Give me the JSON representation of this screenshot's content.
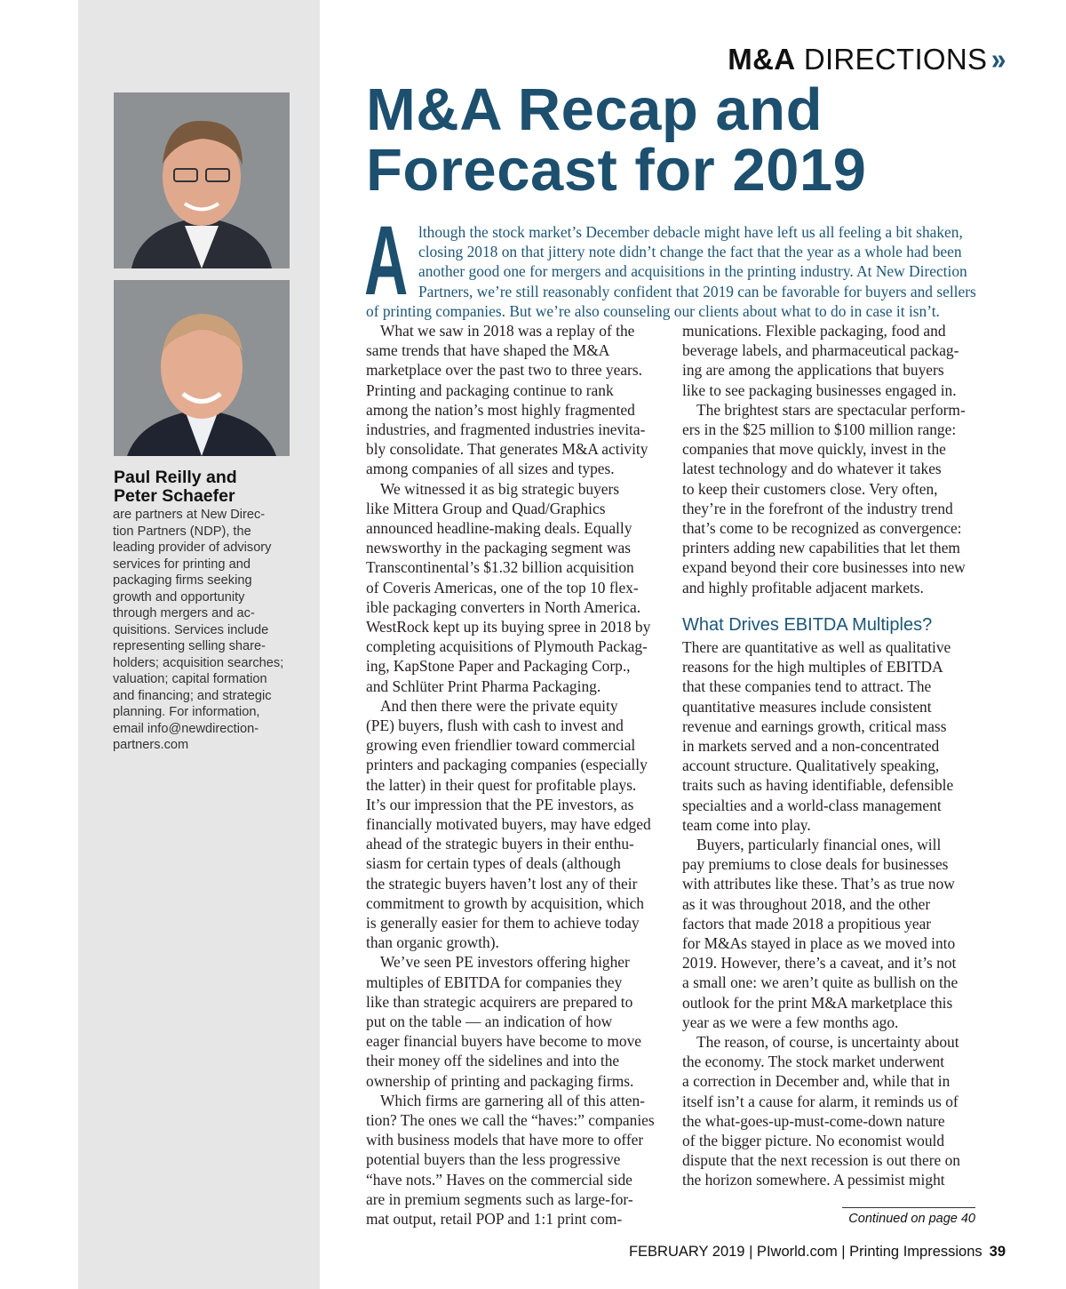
{
  "header": {
    "section_bold": "M&A",
    "section_light": "DIRECTIONS",
    "chevron": "»",
    "accent_color": "#1d5677"
  },
  "title": {
    "line1": "M&A Recap and",
    "line2": "Forecast for 2019"
  },
  "sidebar": {
    "photos": [
      {
        "icon": "portrait-paul-reilly"
      },
      {
        "icon": "portrait-peter-schaefer"
      }
    ],
    "name_lines": [
      "Paul Reilly and",
      "Peter Schaefer"
    ],
    "bio_lines": [
      "are partners at New Direc-",
      "tion Partners (NDP), the",
      "leading provider of advisory",
      "services for printing and",
      "packaging firms seeking",
      "growth and opportunity",
      "through mergers and ac-",
      "quisitions. Services include",
      "representing selling share-",
      "holders; acquisition searches;",
      "valuation; capital formation",
      "and financing; and strategic",
      "planning. For information,",
      "email info@newdirection-",
      "partners.com"
    ]
  },
  "intro": {
    "drop_cap": "A",
    "lines": [
      "lthough the stock market’s December debacle might have left us all feeling a bit shaken,",
      "closing 2018 on that jittery note didn’t change the fact that the year as a whole had been",
      "another good one for mergers and acquisitions in the printing industry. At New Direction",
      "Partners, we’re still reasonably confident that 2019 can be favorable for buyers and sellers",
      "of printing companies. But we’re also counseling our clients about what to do in case it isn’t."
    ]
  },
  "column1": [
    {
      "t": "What we saw in 2018 was a replay of the",
      "i": 1
    },
    {
      "t": "same trends that have shaped the M&A"
    },
    {
      "t": "marketplace over the past two to three years."
    },
    {
      "t": "Printing and packaging continue to rank"
    },
    {
      "t": "among the nation’s most highly fragmented"
    },
    {
      "t": "industries, and fragmented industries inevita-"
    },
    {
      "t": "bly consolidate. That generates M&A activity"
    },
    {
      "t": "among companies of all sizes and types."
    },
    {
      "t": "We witnessed it as big strategic buyers",
      "i": 1
    },
    {
      "t": "like Mittera Group and Quad/Graphics"
    },
    {
      "t": "announced headline-making deals. Equally"
    },
    {
      "t": "newsworthy in the packaging segment was"
    },
    {
      "t": "Transcontinental’s $1.32 billion acquisition"
    },
    {
      "t": "of Coveris Americas, one of the top 10 flex-"
    },
    {
      "t": "ible packaging converters in North America."
    },
    {
      "t": "WestRock kept up its buying spree in 2018 by"
    },
    {
      "t": "completing acquisitions of Plymouth Packag-"
    },
    {
      "t": "ing, KapStone Paper and Packaging Corp.,"
    },
    {
      "t": "and Schlüter Print Pharma Packaging."
    },
    {
      "t": "And then there were the private equity",
      "i": 1
    },
    {
      "t": "(PE) buyers, flush with cash to invest and"
    },
    {
      "t": "growing even friendlier toward commercial"
    },
    {
      "t": "printers and packaging companies (especially"
    },
    {
      "t": "the latter) in their quest for profitable plays."
    },
    {
      "t": "It’s our impression that the PE investors, as"
    },
    {
      "t": "financially motivated buyers, may have edged"
    },
    {
      "t": "ahead of the strategic buyers in their enthu-"
    },
    {
      "t": "siasm for certain types of deals (although"
    },
    {
      "t": "the strategic buyers haven’t lost any of their"
    },
    {
      "t": "commitment to growth by acquisition, which"
    },
    {
      "t": "is generally easier for them to achieve today"
    },
    {
      "t": "than organic growth)."
    },
    {
      "t": "We’ve seen PE investors offering higher",
      "i": 1
    },
    {
      "t": "multiples of EBITDA for companies they"
    },
    {
      "t": "like than strategic acquirers are prepared to"
    },
    {
      "t": "put on the table — an indication of how"
    },
    {
      "t": "eager financial buyers have become to move"
    },
    {
      "t": "their money off the sidelines and into the"
    },
    {
      "t": "ownership of printing and packaging firms."
    },
    {
      "t": "Which firms are garnering all of this atten-",
      "i": 1
    },
    {
      "t": "tion? The ones we call the “haves:” companies"
    },
    {
      "t": "with business models that have more to offer"
    },
    {
      "t": "potential buyers than the less progressive"
    },
    {
      "t": "“have nots.” Haves on the commercial side"
    },
    {
      "t": "are in premium segments such as large-for-"
    },
    {
      "t": "mat output, retail POP and 1:1 print com-"
    }
  ],
  "column2_top": [
    {
      "t": "munications. Flexible packaging, food and"
    },
    {
      "t": "beverage labels, and pharmaceutical packag-"
    },
    {
      "t": "ing are among the applications that buyers"
    },
    {
      "t": "like to see packaging businesses engaged in."
    },
    {
      "t": "The brightest stars are spectacular perform-",
      "i": 1
    },
    {
      "t": "ers in the $25 million to $100 million range:"
    },
    {
      "t": "companies that move quickly, invest in the"
    },
    {
      "t": "latest technology and do whatever it takes"
    },
    {
      "t": "to keep their customers close. Very often,"
    },
    {
      "t": "they’re in the forefront of the industry trend"
    },
    {
      "t": "that’s come to be recognized as convergence:"
    },
    {
      "t": "printers adding new capabilities that let them"
    },
    {
      "t": "expand beyond their core businesses into new"
    },
    {
      "t": "and highly profitable adjacent markets."
    }
  ],
  "subhead": "What Drives EBITDA Multiples?",
  "column2_bottom": [
    {
      "t": "There are quantitative as well as qualitative"
    },
    {
      "t": "reasons for the high multiples of EBITDA"
    },
    {
      "t": "that these companies tend to attract. The"
    },
    {
      "t": "quantitative measures include consistent"
    },
    {
      "t": "revenue and earnings growth, critical mass"
    },
    {
      "t": "in markets served and a non-concentrated"
    },
    {
      "t": "account structure. Qualitatively speaking,"
    },
    {
      "t": "traits such as having identifiable, defensible"
    },
    {
      "t": "specialties and a world-class management"
    },
    {
      "t": "team come into play."
    },
    {
      "t": "Buyers, particularly financial ones, will",
      "i": 1
    },
    {
      "t": "pay premiums to close deals for businesses"
    },
    {
      "t": "with attributes like these. That’s as true now"
    },
    {
      "t": "as it was throughout 2018, and the other"
    },
    {
      "t": "factors that made 2018 a propitious year"
    },
    {
      "t": "for M&As stayed in place as we moved into"
    },
    {
      "t": "2019. However, there’s a caveat, and it’s not"
    },
    {
      "t": "a small one: we aren’t quite as bullish on the"
    },
    {
      "t": "outlook for the print M&A marketplace this"
    },
    {
      "t": "year as we were a few months ago."
    },
    {
      "t": "The reason, of course, is uncertainty about",
      "i": 1
    },
    {
      "t": "the economy. The stock market underwent"
    },
    {
      "t": "a correction in December and, while that in"
    },
    {
      "t": "itself isn’t a cause for alarm, it reminds us of"
    },
    {
      "t": "the what-goes-up-must-come-down nature"
    },
    {
      "t": "of the bigger picture. No economist would"
    },
    {
      "t": "dispute that the next recession is out there on"
    },
    {
      "t": "the horizon somewhere. A pessimist might"
    }
  ],
  "continued": "Continued on page 40",
  "footer": {
    "text": "FEBRUARY 2019 | PIworld.com | Printing Impressions",
    "page": "39"
  }
}
